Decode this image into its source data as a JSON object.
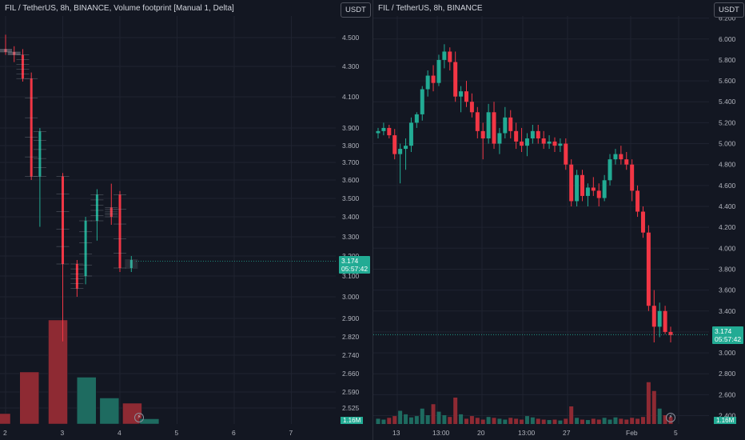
{
  "left": {
    "title": "FIL / TetherUS, 8h, BINANCE, Volume footprint [Manual 1, Delta]",
    "currency": "USDT",
    "price_label": "3.174",
    "countdown": "05:57:42",
    "volume_label": "1.16M",
    "bolt": "⚡"
  },
  "right": {
    "title": "FIL / TetherUS, 8h, BINANCE",
    "currency": "USDT",
    "price_label": "3.174",
    "countdown": "05:57:42",
    "volume_label": "1.16M",
    "bolt": "⚡"
  },
  "colors": {
    "up": "#22ab94",
    "down": "#f23645",
    "up_dim": "#1e6b60",
    "down_dim": "#8e2a33"
  },
  "chart_data": [
    {
      "type": "candlestick",
      "title": "FIL / TetherUS, 8h, BINANCE, Volume footprint [Manual 1, Delta]",
      "y_ticks": [
        "4.500",
        "4.300",
        "4.100",
        "3.900",
        "3.800",
        "3.700",
        "3.600",
        "3.500",
        "3.400",
        "3.300",
        "3.200",
        "3.100",
        "3.000",
        "2.900",
        "2.820",
        "2.740",
        "2.660",
        "2.590",
        "2.525"
      ],
      "x_ticks": [
        "2",
        "3",
        "4",
        "5",
        "6",
        "7"
      ],
      "candles": [
        {
          "x": 2.0,
          "o": 4.42,
          "h": 4.52,
          "l": 4.38,
          "c": 4.4
        },
        {
          "x": 2.15,
          "o": 4.4,
          "h": 4.44,
          "l": 4.33,
          "c": 4.38
        },
        {
          "x": 2.3,
          "o": 4.38,
          "h": 4.42,
          "l": 4.2,
          "c": 4.22
        },
        {
          "x": 2.45,
          "o": 4.22,
          "h": 4.26,
          "l": 3.6,
          "c": 3.62
        },
        {
          "x": 2.6,
          "o": 3.62,
          "h": 3.9,
          "l": 3.35,
          "c": 3.88
        },
        {
          "x": 3.0,
          "o": 3.62,
          "h": 3.64,
          "l": 2.8,
          "c": 3.16
        },
        {
          "x": 3.25,
          "o": 3.16,
          "h": 3.18,
          "l": 3.0,
          "c": 3.04
        },
        {
          "x": 3.4,
          "o": 3.1,
          "h": 3.4,
          "l": 3.06,
          "c": 3.38
        },
        {
          "x": 3.6,
          "o": 3.38,
          "h": 3.55,
          "l": 3.28,
          "c": 3.52
        },
        {
          "x": 3.85,
          "o": 3.45,
          "h": 3.58,
          "l": 3.36,
          "c": 3.4
        },
        {
          "x": 4.0,
          "o": 3.52,
          "h": 3.54,
          "l": 3.12,
          "c": 3.14
        },
        {
          "x": 4.2,
          "o": 3.14,
          "h": 3.2,
          "l": 3.12,
          "c": 3.18
        }
      ],
      "volume_profile": [
        {
          "x": 2.0,
          "value": 0.1,
          "dir": "down"
        },
        {
          "x": 2.5,
          "value": 0.5,
          "dir": "down"
        },
        {
          "x": 3.0,
          "value": 1.0,
          "dir": "down"
        },
        {
          "x": 3.5,
          "value": 0.45,
          "dir": "up"
        },
        {
          "x": 3.9,
          "value": 0.25,
          "dir": "up"
        },
        {
          "x": 4.3,
          "value": 0.2,
          "dir": "down"
        },
        {
          "x": 4.6,
          "value": 0.05,
          "dir": "up"
        }
      ],
      "last_price": 3.174,
      "ylim": [
        2.48,
        4.62
      ]
    },
    {
      "type": "candlestick",
      "title": "FIL / TetherUS, 8h, BINANCE",
      "y_ticks": [
        "6.200",
        "6.000",
        "5.800",
        "5.600",
        "5.400",
        "5.200",
        "5.000",
        "4.800",
        "4.600",
        "4.400",
        "4.200",
        "4.000",
        "3.800",
        "3.600",
        "3.400",
        "3.200",
        "3.000",
        "2.800",
        "2.600",
        "2.400"
      ],
      "x_ticks": [
        "13",
        "13:00",
        "20",
        "13:00",
        "27",
        "Feb",
        "5"
      ],
      "candles": [
        [
          5.1,
          5.15,
          5.05,
          5.12
        ],
        [
          5.12,
          5.2,
          5.08,
          5.15
        ],
        [
          5.15,
          5.18,
          5.05,
          5.08
        ],
        [
          5.08,
          5.14,
          4.85,
          4.9
        ],
        [
          4.9,
          5.0,
          4.62,
          4.95
        ],
        [
          4.95,
          5.05,
          4.75,
          4.98
        ],
        [
          4.98,
          5.25,
          4.92,
          5.2
        ],
        [
          5.2,
          5.3,
          5.15,
          5.28
        ],
        [
          5.28,
          5.55,
          5.22,
          5.52
        ],
        [
          5.52,
          5.7,
          5.45,
          5.65
        ],
        [
          5.65,
          5.75,
          5.5,
          5.58
        ],
        [
          5.58,
          5.85,
          5.55,
          5.8
        ],
        [
          5.8,
          5.95,
          5.72,
          5.88
        ],
        [
          5.88,
          5.92,
          5.7,
          5.78
        ],
        [
          5.78,
          5.88,
          5.4,
          5.45
        ],
        [
          5.45,
          5.55,
          5.3,
          5.5
        ],
        [
          5.5,
          5.6,
          5.35,
          5.4
        ],
        [
          5.4,
          5.48,
          5.25,
          5.3
        ],
        [
          5.3,
          5.35,
          5.05,
          5.12
        ],
        [
          5.12,
          5.2,
          4.85,
          5.05
        ],
        [
          5.05,
          5.38,
          5.0,
          5.3
        ],
        [
          5.3,
          5.4,
          4.95,
          5.0
        ],
        [
          5.0,
          5.15,
          4.9,
          5.1
        ],
        [
          5.1,
          5.35,
          5.05,
          5.25
        ],
        [
          5.25,
          5.32,
          5.05,
          5.12
        ],
        [
          5.12,
          5.2,
          4.95,
          5.02
        ],
        [
          5.02,
          5.15,
          4.92,
          4.98
        ],
        [
          4.98,
          5.1,
          4.88,
          5.05
        ],
        [
          5.05,
          5.18,
          5.0,
          5.12
        ],
        [
          5.12,
          5.18,
          5.0,
          5.05
        ],
        [
          5.05,
          5.12,
          4.95,
          5.0
        ],
        [
          5.0,
          5.08,
          4.95,
          5.02
        ],
        [
          5.02,
          5.06,
          4.92,
          4.98
        ],
        [
          4.98,
          5.05,
          4.92,
          5.0
        ],
        [
          5.0,
          5.05,
          4.75,
          4.8
        ],
        [
          4.8,
          4.85,
          4.4,
          4.45
        ],
        [
          4.45,
          4.75,
          4.4,
          4.7
        ],
        [
          4.7,
          4.75,
          4.45,
          4.5
        ],
        [
          4.5,
          4.62,
          4.4,
          4.58
        ],
        [
          4.58,
          4.68,
          4.5,
          4.55
        ],
        [
          4.55,
          4.62,
          4.4,
          4.48
        ],
        [
          4.48,
          4.7,
          4.45,
          4.65
        ],
        [
          4.65,
          4.9,
          4.6,
          4.85
        ],
        [
          4.85,
          4.95,
          4.8,
          4.9
        ],
        [
          4.9,
          4.98,
          4.8,
          4.85
        ],
        [
          4.85,
          4.92,
          4.75,
          4.8
        ],
        [
          4.8,
          4.85,
          4.45,
          4.55
        ],
        [
          4.55,
          4.6,
          4.3,
          4.35
        ],
        [
          4.35,
          4.4,
          4.1,
          4.15
        ],
        [
          4.15,
          4.22,
          3.4,
          3.45
        ],
        [
          3.45,
          3.6,
          3.1,
          3.25
        ],
        [
          3.25,
          3.48,
          3.15,
          3.4
        ],
        [
          3.4,
          3.45,
          3.18,
          3.2
        ],
        [
          3.2,
          3.25,
          3.1,
          3.17
        ]
      ],
      "volumes": [
        0.12,
        0.1,
        0.14,
        0.18,
        0.3,
        0.22,
        0.15,
        0.18,
        0.35,
        0.2,
        0.45,
        0.28,
        0.2,
        0.16,
        0.6,
        0.22,
        0.12,
        0.18,
        0.14,
        0.1,
        0.16,
        0.14,
        0.12,
        0.1,
        0.14,
        0.12,
        0.1,
        0.18,
        0.15,
        0.12,
        0.1,
        0.09,
        0.1,
        0.08,
        0.12,
        0.4,
        0.14,
        0.1,
        0.09,
        0.12,
        0.1,
        0.14,
        0.1,
        0.15,
        0.12,
        0.1,
        0.14,
        0.12,
        0.16,
        0.95,
        0.75,
        0.35,
        0.2,
        0.16
      ],
      "last_price": 3.174,
      "ylim": [
        2.32,
        6.22
      ]
    }
  ]
}
